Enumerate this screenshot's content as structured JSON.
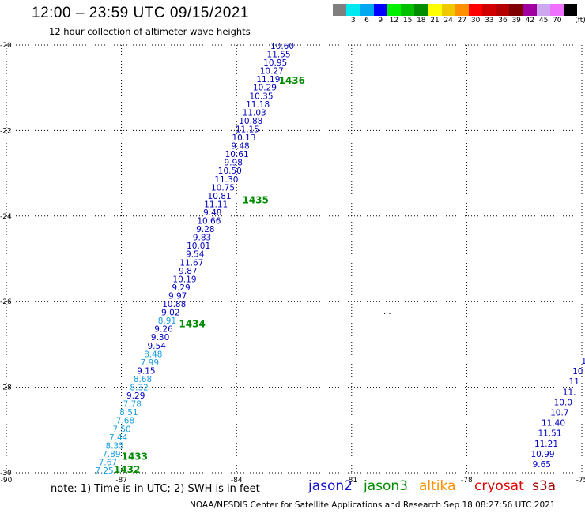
{
  "title": "12:00 – 23:59 UTC 09/15/2021",
  "subtitle": "12 hour collection of altimeter wave heights",
  "colorbar": {
    "colors": [
      "#7f7f7f",
      "#00e8f0",
      "#00a8f0",
      "#0000ff",
      "#00f000",
      "#00c000",
      "#008c00",
      "#ffff00",
      "#f0c800",
      "#ff9000",
      "#ff0000",
      "#d00000",
      "#b40000",
      "#7e0000",
      "#a000a0",
      "#cda7f0",
      "#f070ff",
      "#000000"
    ],
    "labels": [
      "3",
      "6",
      "9",
      "12",
      "15",
      "18",
      "21",
      "24",
      "27",
      "30",
      "33",
      "36",
      "39",
      "42",
      "45",
      "70"
    ],
    "unit": "(ft)"
  },
  "map": {
    "lon_range": [
      -90,
      -75
    ],
    "lat_range": [
      -30,
      -20
    ],
    "lon_ticks": [
      "-90",
      "-87",
      "-84",
      "-81",
      "-78",
      "-75"
    ],
    "lat_ticks": [
      "-20",
      "-22",
      "-24",
      "-26",
      "-28",
      "-30"
    ],
    "grid": true,
    "land_fragment": ". ."
  },
  "passes": [
    {
      "label": "1436",
      "lon": -82.9,
      "lat": -20.9
    },
    {
      "label": "1435",
      "lon": -83.85,
      "lat": -23.7
    },
    {
      "label": "1434",
      "lon": -85.5,
      "lat": -26.6
    },
    {
      "label": "1433",
      "lon": -87.0,
      "lat": -29.7
    },
    {
      "label": "1432",
      "lon": -87.2,
      "lat": -30.0
    }
  ],
  "track_main": {
    "values": [
      "10.60",
      "11.55",
      "10.95",
      "10.27",
      "11.19",
      "10.29",
      "10.35",
      "11.18",
      "11.03",
      "10.88",
      "11.15",
      "10.13",
      "9.48",
      "10.61",
      "9.98",
      "10.50",
      "11.30",
      "10.75",
      "10.81",
      "11.11",
      "9.48",
      "10.66",
      "9.28",
      "9.83",
      "10.01",
      "9.54",
      "11.67",
      "9.87",
      "10.19",
      "9.29",
      "9.97",
      "10.88",
      "9.02",
      "8.91",
      "9.26",
      "9.30",
      "9.54",
      "8.48",
      "7.99",
      "9.15",
      "8.68",
      "8.32",
      "9.29",
      "7.78",
      "8.51",
      "7.68",
      "7.50",
      "7.44",
      "8.35",
      "7.89",
      "7.67",
      "7.25"
    ],
    "colors": [
      "#0000c0",
      "#0000c0",
      "#0000c0",
      "#0000c0",
      "#0000c0",
      "#0000c0",
      "#0000c0",
      "#0000c0",
      "#0000c0",
      "#0000c0",
      "#0000c0",
      "#0000c0",
      "#0000c0",
      "#0000c0",
      "#0000c0",
      "#0000c0",
      "#0000c0",
      "#0000c0",
      "#0000c0",
      "#0000c0",
      "#0000c0",
      "#0000c0",
      "#0000c0",
      "#0000c0",
      "#0000c0",
      "#0000c0",
      "#0000c0",
      "#0000c0",
      "#0000c0",
      "#0000c0",
      "#0000c0",
      "#0000c0",
      "#0000c0",
      "#1ca0e0",
      "#0000c0",
      "#0000c0",
      "#0000c0",
      "#1ca0e0",
      "#1ca0e0",
      "#0000c0",
      "#1ca0e0",
      "#1ca0e0",
      "#0000c0",
      "#1ca0e0",
      "#1ca0e0",
      "#1ca0e0",
      "#1ca0e0",
      "#1ca0e0",
      "#1ca0e0",
      "#1ca0e0",
      "#1ca0e0",
      "#1ca0e0"
    ]
  },
  "track_right": {
    "values": [
      "1",
      "10",
      "11",
      "11.",
      "10.0",
      "10.7",
      "11.40",
      "11.51",
      "11.21",
      "10.99",
      "9.65"
    ]
  },
  "legend": {
    "note": "note: 1) Time is in UTC; 2) SWH is in feet",
    "satellites": [
      {
        "name": "jason2",
        "color": "#1010d0"
      },
      {
        "name": "jason3",
        "color": "#008c00"
      },
      {
        "name": "altika",
        "color": "#ff9000"
      },
      {
        "name": "cryosat",
        "color": "#e00000"
      },
      {
        "name": "s3a",
        "color": "#a00000"
      }
    ]
  },
  "footer": "NOAA/NESDIS Center for Satellite Applications and Research    Sep 18 08:27:56 UTC 2021"
}
